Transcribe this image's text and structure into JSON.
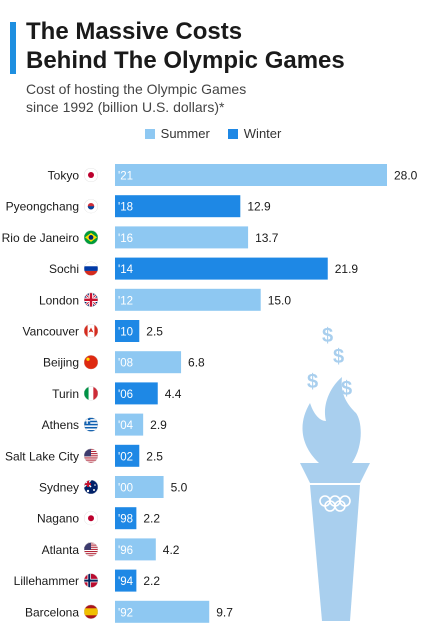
{
  "header": {
    "title_line1": "The Massive Costs",
    "title_line2": "Behind The Olympic Games",
    "subtitle_line1": "Cost of hosting the Olympic Games",
    "subtitle_line2": "since 1992 (billion U.S. dollars)*"
  },
  "colors": {
    "summer": "#8ec8f2",
    "winter": "#1e88e5",
    "accent": "#1e8fe0",
    "torch": "#a9cfee"
  },
  "chart_data": {
    "type": "bar",
    "orientation": "horizontal",
    "legend": [
      {
        "name": "Summer",
        "color": "#8ec8f2"
      },
      {
        "name": "Winter",
        "color": "#1e88e5"
      }
    ],
    "categories": [
      "Tokyo",
      "Pyeongchang",
      "Rio de Janeiro",
      "Sochi",
      "London",
      "Vancouver",
      "Beijing",
      "Turin",
      "Athens",
      "Salt Lake City",
      "Sydney",
      "Nagano",
      "Atlanta",
      "Lillehammer",
      "Barcelona"
    ],
    "year_labels": [
      "'21",
      "'18",
      "'16",
      "'14",
      "'12",
      "'10",
      "'08",
      "'06",
      "'04",
      "'02",
      "'00",
      "'98",
      "'96",
      "'94",
      "'92"
    ],
    "seasons": [
      "Summer",
      "Winter",
      "Summer",
      "Winter",
      "Summer",
      "Winter",
      "Summer",
      "Winter",
      "Summer",
      "Winter",
      "Summer",
      "Winter",
      "Summer",
      "Winter",
      "Summer"
    ],
    "values": [
      28.0,
      12.9,
      13.7,
      21.9,
      15.0,
      2.5,
      6.8,
      4.4,
      2.9,
      2.5,
      5.0,
      2.2,
      4.2,
      2.2,
      9.7
    ],
    "value_labels": [
      "28.0",
      "12.9",
      "13.7",
      "21.9",
      "15.0",
      "2.5",
      "6.8",
      "4.4",
      "2.9",
      "2.5",
      "5.0",
      "2.2",
      "4.2",
      "2.2",
      "9.7"
    ],
    "flags": [
      "japan-flag-icon",
      "south-korea-flag-icon",
      "brazil-flag-icon",
      "russia-flag-icon",
      "uk-flag-icon",
      "canada-flag-icon",
      "china-flag-icon",
      "italy-flag-icon",
      "greece-flag-icon",
      "usa-flag-icon",
      "australia-flag-icon",
      "japan-flag-icon",
      "usa-flag-icon",
      "norway-flag-icon",
      "spain-flag-icon"
    ]
  },
  "illustration": {
    "icon": "olympic-torch-icon",
    "symbols": [
      "$",
      "$",
      "$",
      "$"
    ]
  }
}
